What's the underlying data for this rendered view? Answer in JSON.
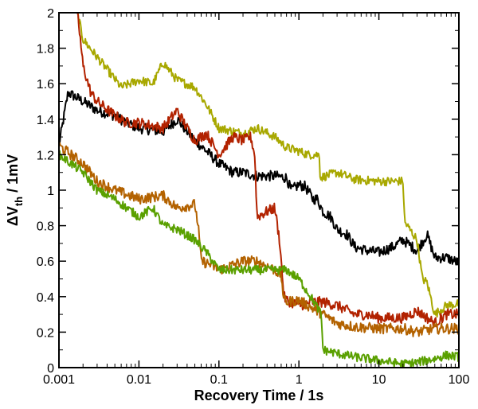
{
  "chart_data": {
    "type": "line",
    "title": "",
    "xlabel": "Recovery Time / 1s",
    "ylabel": {
      "base": "ΔV",
      "sub": "th",
      "rest": " / 1mV"
    },
    "xscale": "log",
    "xlim": [
      0.001,
      100
    ],
    "ylim": [
      0,
      2
    ],
    "grid": false,
    "legend": "none",
    "x_ticks": [
      {
        "value": 0.001,
        "label": "0.001"
      },
      {
        "value": 0.01,
        "label": "0.01"
      },
      {
        "value": 0.1,
        "label": "0.1"
      },
      {
        "value": 1,
        "label": "1"
      },
      {
        "value": 10,
        "label": "10"
      },
      {
        "value": 100,
        "label": "100"
      }
    ],
    "y_ticks": [
      {
        "value": 0,
        "label": "0"
      },
      {
        "value": 0.2,
        "label": "0.2"
      },
      {
        "value": 0.4,
        "label": "0.4"
      },
      {
        "value": 0.6,
        "label": "0.6"
      },
      {
        "value": 0.8,
        "label": "0.8"
      },
      {
        "value": 1,
        "label": "1"
      },
      {
        "value": 1.2,
        "label": "1.2"
      },
      {
        "value": 1.4,
        "label": "1.4"
      },
      {
        "value": 1.6,
        "label": "1.6"
      },
      {
        "value": 1.8,
        "label": "1.8"
      },
      {
        "value": 2,
        "label": "2"
      }
    ],
    "series": [
      {
        "name": "black",
        "color": "#000000",
        "noise": 0.03,
        "x": [
          0.001,
          0.0013,
          0.002,
          0.003,
          0.005,
          0.007,
          0.01,
          0.02,
          0.03,
          0.05,
          0.07,
          0.1,
          0.15,
          0.2,
          0.3,
          0.5,
          0.7,
          0.8,
          1,
          1.2,
          1.5,
          1.7,
          2,
          2.5,
          3,
          4,
          5,
          7,
          10,
          15,
          20,
          30,
          40,
          50,
          70,
          100
        ],
        "y": [
          1.25,
          1.55,
          1.5,
          1.45,
          1.42,
          1.38,
          1.35,
          1.33,
          1.4,
          1.28,
          1.22,
          1.15,
          1.1,
          1.1,
          1.08,
          1.08,
          1.07,
          1.0,
          1.03,
          1.02,
          0.95,
          0.95,
          0.88,
          0.85,
          0.78,
          0.75,
          0.68,
          0.66,
          0.65,
          0.68,
          0.72,
          0.66,
          0.75,
          0.62,
          0.62,
          0.59
        ]
      },
      {
        "name": "olive",
        "color": "#a8a800",
        "noise": 0.025,
        "x": [
          0.0017,
          0.002,
          0.003,
          0.004,
          0.006,
          0.01,
          0.015,
          0.02,
          0.03,
          0.05,
          0.07,
          0.1,
          0.2,
          0.3,
          0.5,
          0.7,
          1,
          1.3,
          1.8,
          1.85,
          3,
          5,
          10,
          15,
          20,
          21,
          30,
          35,
          40,
          50,
          70,
          100
        ],
        "y": [
          2.0,
          1.85,
          1.75,
          1.68,
          1.58,
          1.62,
          1.6,
          1.72,
          1.62,
          1.58,
          1.48,
          1.35,
          1.32,
          1.35,
          1.3,
          1.24,
          1.22,
          1.2,
          1.2,
          1.07,
          1.1,
          1.06,
          1.05,
          1.05,
          1.05,
          0.82,
          0.72,
          0.5,
          0.48,
          0.3,
          0.35,
          0.36
        ]
      },
      {
        "name": "red",
        "color": "#b22200",
        "noise": 0.03,
        "x": [
          0.0017,
          0.0018,
          0.002,
          0.0025,
          0.003,
          0.005,
          0.007,
          0.01,
          0.02,
          0.03,
          0.04,
          0.05,
          0.07,
          0.1,
          0.15,
          0.2,
          0.25,
          0.28,
          0.3,
          0.4,
          0.5,
          0.58,
          0.6,
          0.65,
          0.7,
          1,
          1.5,
          2,
          3,
          5,
          7,
          10,
          15,
          20,
          30,
          50,
          70,
          100
        ],
        "y": [
          2.0,
          1.9,
          1.7,
          1.55,
          1.5,
          1.42,
          1.38,
          1.38,
          1.35,
          1.45,
          1.35,
          1.28,
          1.32,
          1.2,
          1.3,
          1.28,
          1.3,
          1.2,
          0.85,
          0.88,
          0.9,
          0.7,
          0.6,
          0.4,
          0.38,
          0.35,
          0.37,
          0.37,
          0.35,
          0.3,
          0.3,
          0.28,
          0.28,
          0.28,
          0.32,
          0.25,
          0.3,
          0.3
        ]
      },
      {
        "name": "orange",
        "color": "#b36200",
        "noise": 0.03,
        "x": [
          0.001,
          0.002,
          0.003,
          0.005,
          0.01,
          0.02,
          0.03,
          0.05,
          0.055,
          0.06,
          0.08,
          0.1,
          0.2,
          0.3,
          0.5,
          0.6,
          0.65,
          0.7,
          1,
          2,
          3,
          5,
          10,
          20,
          30,
          50,
          100
        ],
        "y": [
          1.25,
          1.15,
          1.05,
          1.0,
          0.95,
          0.97,
          0.9,
          0.92,
          0.8,
          0.6,
          0.58,
          0.55,
          0.6,
          0.6,
          0.55,
          0.52,
          0.38,
          0.37,
          0.38,
          0.3,
          0.25,
          0.23,
          0.22,
          0.22,
          0.2,
          0.22,
          0.22
        ]
      },
      {
        "name": "green",
        "color": "#5aa000",
        "noise": 0.025,
        "x": [
          0.001,
          0.002,
          0.003,
          0.005,
          0.007,
          0.01,
          0.015,
          0.02,
          0.03,
          0.05,
          0.07,
          0.1,
          0.2,
          0.3,
          0.5,
          0.7,
          1,
          1.5,
          1.9,
          2,
          3,
          5,
          10,
          20,
          30,
          50,
          70,
          100
        ],
        "y": [
          1.2,
          1.1,
          1.0,
          0.95,
          0.9,
          0.85,
          0.9,
          0.8,
          0.78,
          0.72,
          0.65,
          0.55,
          0.55,
          0.55,
          0.55,
          0.55,
          0.5,
          0.38,
          0.3,
          0.1,
          0.08,
          0.06,
          0.04,
          0.02,
          0.03,
          0.05,
          0.07,
          0.06
        ]
      }
    ]
  }
}
